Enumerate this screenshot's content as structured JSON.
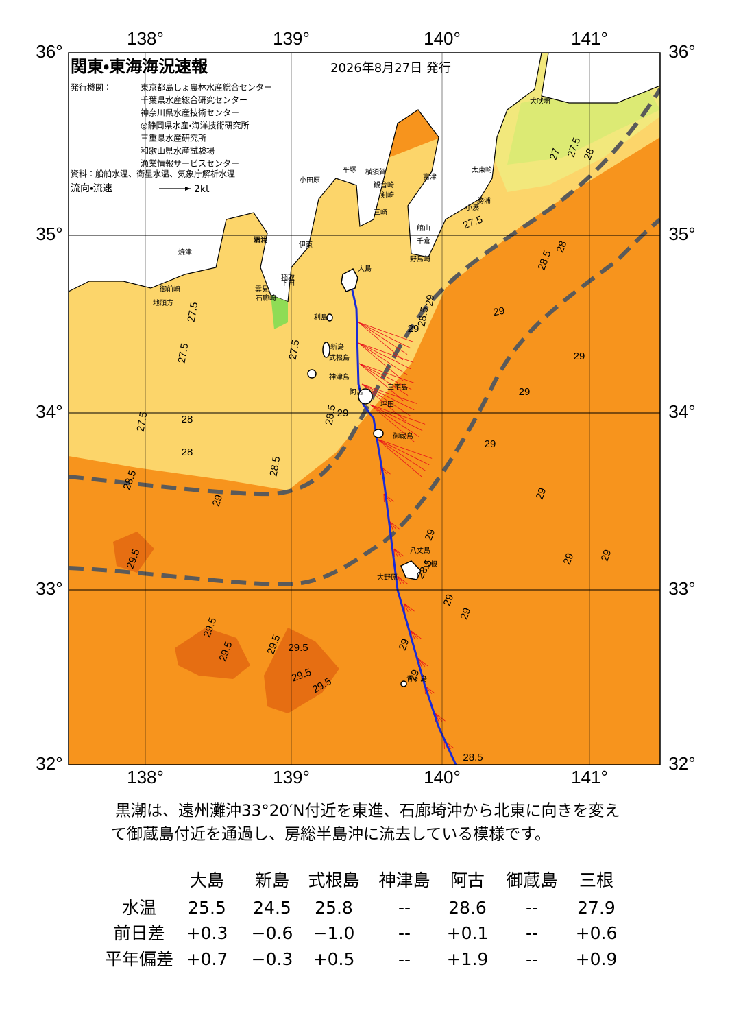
{
  "header": {
    "title": "関東・東海海況速報",
    "date": "2026年8月27日 発行"
  },
  "issuers": {
    "label": "発行機関：",
    "names": [
      "東京都島しょ農林水産総合センター",
      "千葉県水産総合研究センター",
      "神奈川県水産技術センター",
      "◎静岡県水産・海洋技術研究所",
      "三重県水産研究所",
      "和歌山県水産試験場",
      "漁業情報サービスセンター"
    ]
  },
  "source": "資料：船舶水温、衛星水温、気象庁解析水温",
  "flow": {
    "label": "流向・流速",
    "scale": "2kt"
  },
  "axes": {
    "lon": [
      "138°",
      "139°",
      "140°",
      "141°"
    ],
    "lat": [
      "36°",
      "35°",
      "34°",
      "33°",
      "32°"
    ]
  },
  "places": [
    "大島",
    "利島",
    "新島",
    "式根島",
    "神津島",
    "阿古",
    "三宅島",
    "坪田",
    "御蔵島",
    "八丈島",
    "三根",
    "大野原",
    "青ヶ島",
    "犬吠埼",
    "太東崎",
    "勝浦",
    "小湊",
    "富津",
    "館山",
    "千倉",
    "野島崎",
    "横須賀",
    "観音崎",
    "剣崎",
    "三崎",
    "平塚",
    "小田原",
    "網代",
    "伊東",
    "稲取",
    "下田",
    "石廊崎",
    "雲見",
    "沼津",
    "焼津",
    "御前崎",
    "地頭方"
  ],
  "isotherms": [
    "27.5",
    "27.5",
    "27.5",
    "27.5",
    "28",
    "28",
    "28.5",
    "28.5",
    "28.5",
    "29",
    "29",
    "29.5",
    "29.5",
    "29.5",
    "29.5",
    "29.5",
    "29.5",
    "29.5",
    "28.5",
    "29",
    "29",
    "29",
    "29",
    "29",
    "29",
    "29",
    "29",
    "28.5",
    "29",
    "29",
    "29",
    "29",
    "27.5",
    "28.5",
    "28",
    "27",
    "27.5",
    "28",
    "29",
    "28.5",
    "29"
  ],
  "summary": [
    "黒潮は、遠州灘沖33°20′N付近を東進、石廊埼沖から北東に向きを変え",
    "て御蔵島付近を通過し、房総半島沖に流去している模様です。"
  ],
  "table": {
    "columns": [
      "大島",
      "新島",
      "式根島",
      "神津島",
      "阿古",
      "御蔵島",
      "三根"
    ],
    "rows": [
      {
        "label": "水温",
        "values": [
          "25.5",
          "24.5",
          "25.8",
          "--",
          "28.6",
          "--",
          "27.9"
        ]
      },
      {
        "label": "前日差",
        "values": [
          "+0.3",
          "−0.6",
          "−1.0",
          "--",
          "+0.1",
          "--",
          "+0.6"
        ]
      },
      {
        "label": "平年偏差",
        "values": [
          "+0.7",
          "−0.3",
          "+0.5",
          "--",
          "+1.9",
          "--",
          "+0.9"
        ]
      }
    ]
  }
}
